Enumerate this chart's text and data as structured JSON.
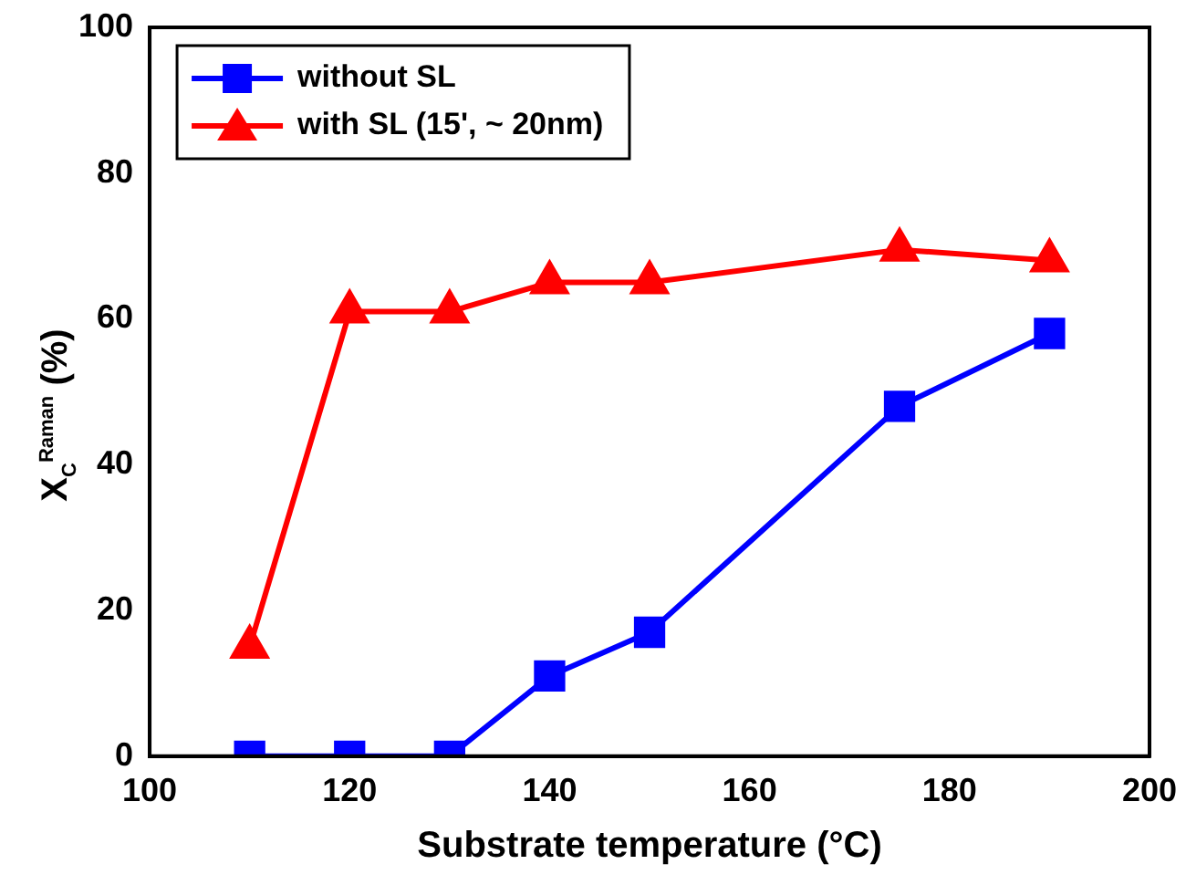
{
  "chart_data": {
    "type": "line",
    "xlabel": "Substrate temperature (°C)",
    "ylabel": "X$_{C}$$^{Raman}$ (%)",
    "x": [
      110,
      120,
      130,
      140,
      150,
      175,
      190
    ],
    "series": [
      {
        "name": "without SL",
        "color": "#0000ff",
        "marker": "square",
        "values": [
          0,
          0,
          0,
          11,
          17,
          48,
          58
        ]
      },
      {
        "name": "with SL (15', ~ 20nm)",
        "color": "#ff0000",
        "marker": "triangle",
        "values": [
          15,
          61,
          61,
          65,
          65,
          69.5,
          68
        ]
      }
    ],
    "xlim": [
      100,
      200
    ],
    "xticks": [
      100,
      120,
      140,
      160,
      180,
      200
    ],
    "ylim": [
      0,
      100
    ],
    "yticks": [
      0,
      20,
      40,
      60,
      80,
      100
    ],
    "grid": false,
    "legend": "top left",
    "line_style": "solid"
  }
}
